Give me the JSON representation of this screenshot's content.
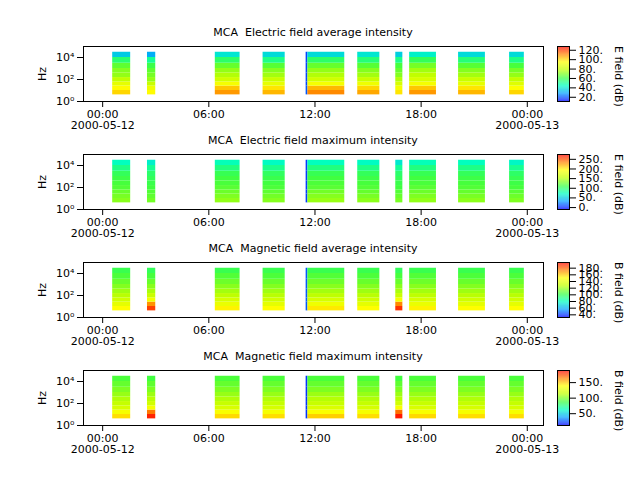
{
  "chart_data": [
    {
      "type": "heatmap",
      "title": "MCA  Electric field average intensity",
      "y_label": "Hz",
      "log": "y",
      "xlim": [
        "2000-05-11T22:55",
        "2000-05-13T00:55"
      ],
      "xticks": [
        {
          "value": "2000-05-12T00:00",
          "label": "00:00\n2000-05-12"
        },
        {
          "value": "2000-05-12T06:00",
          "label": "06:00"
        },
        {
          "value": "2000-05-12T12:00",
          "label": "12:00"
        },
        {
          "value": "2000-05-12T18:00",
          "label": "18:00"
        },
        {
          "value": "2000-05-13T00:00",
          "label": "00:00\n2000-05-13"
        }
      ],
      "ylim": [
        1,
        100000
      ],
      "yticks": [
        {
          "value": 1,
          "label": "10⁰"
        },
        {
          "value": 100,
          "label": "10²"
        },
        {
          "value": 10000,
          "label": "10⁴"
        }
      ],
      "time_bins": [
        [
          "2000-05-12T00:34",
          "2000-05-12T01:35"
        ],
        [
          "2000-05-12T02:32",
          "2000-05-12T03:00"
        ],
        [
          "2000-05-12T06:22",
          "2000-05-12T07:46"
        ],
        [
          "2000-05-12T09:04",
          "2000-05-12T10:19"
        ],
        [
          "2000-05-12T11:30",
          "2000-05-12T11:36"
        ],
        [
          "2000-05-12T11:36",
          "2000-05-12T13:41"
        ],
        [
          "2000-05-12T14:25",
          "2000-05-12T15:40"
        ],
        [
          "2000-05-12T16:34",
          "2000-05-12T16:58"
        ],
        [
          "2000-05-12T17:21",
          "2000-05-12T18:52"
        ],
        [
          "2000-05-12T20:07",
          "2000-05-12T21:38"
        ],
        [
          "2000-05-12T23:00",
          "2000-05-12T23:50"
        ]
      ],
      "freq_bins": [
        4,
        10,
        25,
        60,
        150,
        400,
        1000,
        3000,
        10000,
        30000
      ],
      "values": [
        [
          100,
          95,
          88,
          78,
          72,
          70,
          65,
          55,
          35
        ],
        [
          95,
          90,
          80,
          72,
          68,
          65,
          60,
          50,
          30
        ],
        [
          108,
          102,
          92,
          82,
          76,
          72,
          66,
          56,
          40
        ],
        [
          104,
          98,
          88,
          80,
          74,
          70,
          64,
          52,
          38
        ],
        [
          20,
          20,
          18,
          18,
          18,
          18,
          18,
          18,
          18
        ],
        [
          110,
          104,
          92,
          82,
          76,
          72,
          66,
          56,
          38
        ],
        [
          106,
          100,
          90,
          80,
          74,
          70,
          64,
          54,
          40
        ],
        [
          98,
          92,
          84,
          76,
          70,
          66,
          62,
          52,
          36
        ],
        [
          108,
          102,
          92,
          84,
          78,
          74,
          68,
          58,
          42
        ],
        [
          104,
          98,
          88,
          80,
          74,
          70,
          64,
          54,
          38
        ],
        [
          100,
          94,
          86,
          78,
          72,
          68,
          62,
          52,
          38
        ]
      ],
      "colorbar": {
        "label": "E field (dB)",
        "range": [
          11,
          128
        ],
        "ticks": [
          {
            "value": 20,
            "label": "20."
          },
          {
            "value": 40,
            "label": "40."
          },
          {
            "value": 60,
            "label": "60."
          },
          {
            "value": 80,
            "label": "80."
          },
          {
            "value": 100,
            "label": "100."
          },
          {
            "value": 120,
            "label": "120."
          }
        ]
      }
    },
    {
      "type": "heatmap",
      "title": "MCA  Electric field maximum intensity",
      "y_label": "Hz",
      "log": "y",
      "xlim": [
        "2000-05-11T22:55",
        "2000-05-13T00:55"
      ],
      "xticks": [
        {
          "value": "2000-05-12T00:00",
          "label": "00:00\n2000-05-12"
        },
        {
          "value": "2000-05-12T06:00",
          "label": "06:00"
        },
        {
          "value": "2000-05-12T12:00",
          "label": "12:00"
        },
        {
          "value": "2000-05-12T18:00",
          "label": "18:00"
        },
        {
          "value": "2000-05-13T00:00",
          "label": "00:00\n2000-05-13"
        }
      ],
      "ylim": [
        1,
        100000
      ],
      "yticks": [
        {
          "value": 1,
          "label": "10⁰"
        },
        {
          "value": 100,
          "label": "10²"
        },
        {
          "value": 10000,
          "label": "10⁴"
        }
      ],
      "time_bins": [
        [
          "2000-05-12T00:34",
          "2000-05-12T01:35"
        ],
        [
          "2000-05-12T02:32",
          "2000-05-12T03:00"
        ],
        [
          "2000-05-12T06:22",
          "2000-05-12T07:46"
        ],
        [
          "2000-05-12T09:04",
          "2000-05-12T10:19"
        ],
        [
          "2000-05-12T11:30",
          "2000-05-12T11:36"
        ],
        [
          "2000-05-12T11:36",
          "2000-05-12T13:41"
        ],
        [
          "2000-05-12T14:25",
          "2000-05-12T15:40"
        ],
        [
          "2000-05-12T16:34",
          "2000-05-12T16:58"
        ],
        [
          "2000-05-12T17:21",
          "2000-05-12T18:52"
        ],
        [
          "2000-05-12T20:07",
          "2000-05-12T21:38"
        ],
        [
          "2000-05-12T23:00",
          "2000-05-12T23:50"
        ]
      ],
      "freq_bins": [
        4,
        10,
        25,
        60,
        150,
        400,
        1000,
        3000,
        10000,
        30000
      ],
      "values": [
        [
          135,
          130,
          125,
          118,
          114,
          110,
          104,
          90,
          72
        ],
        [
          128,
          122,
          118,
          112,
          108,
          104,
          98,
          85,
          65
        ],
        [
          138,
          132,
          126,
          120,
          115,
          112,
          106,
          92,
          74
        ],
        [
          134,
          128,
          122,
          116,
          112,
          108,
          102,
          88,
          70
        ],
        [
          5,
          5,
          5,
          5,
          5,
          5,
          5,
          5,
          5
        ],
        [
          140,
          134,
          128,
          120,
          116,
          112,
          106,
          92,
          72
        ],
        [
          136,
          130,
          124,
          118,
          114,
          110,
          104,
          90,
          70
        ],
        [
          130,
          124,
          118,
          112,
          108,
          104,
          98,
          84,
          62
        ],
        [
          138,
          132,
          126,
          120,
          115,
          112,
          106,
          92,
          74
        ],
        [
          136,
          130,
          124,
          118,
          114,
          110,
          104,
          90,
          72
        ],
        [
          132,
          126,
          120,
          114,
          110,
          106,
          100,
          86,
          68
        ]
      ],
      "colorbar": {
        "label": "E field (dB)",
        "range": [
          -10,
          275
        ],
        "ticks": [
          {
            "value": 0,
            "label": "0."
          },
          {
            "value": 50,
            "label": "50."
          },
          {
            "value": 100,
            "label": "100."
          },
          {
            "value": 150,
            "label": "150."
          },
          {
            "value": 200,
            "label": "200."
          },
          {
            "value": 250,
            "label": "250."
          }
        ]
      }
    },
    {
      "type": "heatmap",
      "title": "MCA  Magnetic field average intensity",
      "y_label": "Hz",
      "log": "y",
      "xlim": [
        "2000-05-11T22:55",
        "2000-05-13T00:55"
      ],
      "xticks": [
        {
          "value": "2000-05-12T00:00",
          "label": "00:00\n2000-05-12"
        },
        {
          "value": "2000-05-12T06:00",
          "label": "06:00"
        },
        {
          "value": "2000-05-12T12:00",
          "label": "12:00"
        },
        {
          "value": "2000-05-12T18:00",
          "label": "18:00"
        },
        {
          "value": "2000-05-13T00:00",
          "label": "00:00\n2000-05-13"
        }
      ],
      "ylim": [
        1,
        100000
      ],
      "yticks": [
        {
          "value": 1,
          "label": "10⁰"
        },
        {
          "value": 100,
          "label": "10²"
        },
        {
          "value": 10000,
          "label": "10⁴"
        }
      ],
      "time_bins": [
        [
          "2000-05-12T00:34",
          "2000-05-12T01:35"
        ],
        [
          "2000-05-12T02:32",
          "2000-05-12T03:00"
        ],
        [
          "2000-05-12T06:22",
          "2000-05-12T07:46"
        ],
        [
          "2000-05-12T09:04",
          "2000-05-12T10:19"
        ],
        [
          "2000-05-12T11:30",
          "2000-05-12T11:36"
        ],
        [
          "2000-05-12T11:36",
          "2000-05-12T13:41"
        ],
        [
          "2000-05-12T14:25",
          "2000-05-12T15:40"
        ],
        [
          "2000-05-12T16:34",
          "2000-05-12T16:58"
        ],
        [
          "2000-05-12T17:21",
          "2000-05-12T18:52"
        ],
        [
          "2000-05-12T20:07",
          "2000-05-12T21:38"
        ],
        [
          "2000-05-12T23:00",
          "2000-05-12T23:50"
        ]
      ],
      "freq_bins": [
        4,
        10,
        25,
        60,
        150,
        400,
        1000,
        3000,
        10000,
        30000
      ],
      "values": [
        [
          150,
          140,
          132,
          125,
          120,
          115,
          110,
          105,
          100
        ],
        [
          185,
          170,
          145,
          130,
          122,
          116,
          110,
          104,
          98
        ],
        [
          152,
          142,
          134,
          126,
          121,
          116,
          111,
          106,
          100
        ],
        [
          150,
          140,
          132,
          125,
          120,
          115,
          110,
          105,
          100
        ],
        [
          45,
          45,
          45,
          45,
          45,
          45,
          45,
          45,
          45
        ],
        [
          154,
          144,
          134,
          126,
          121,
          116,
          111,
          106,
          100
        ],
        [
          150,
          140,
          132,
          125,
          120,
          115,
          110,
          105,
          100
        ],
        [
          188,
          172,
          146,
          130,
          122,
          116,
          110,
          104,
          98
        ],
        [
          152,
          142,
          134,
          126,
          121,
          116,
          111,
          106,
          100
        ],
        [
          150,
          140,
          132,
          125,
          120,
          115,
          110,
          105,
          100
        ],
        [
          150,
          140,
          132,
          125,
          120,
          115,
          110,
          105,
          100
        ]
      ],
      "colorbar": {
        "label": "B field (dB)",
        "range": [
          32,
          197
        ],
        "ticks": [
          {
            "value": 40,
            "label": "40."
          },
          {
            "value": 60,
            "label": "60."
          },
          {
            "value": 80,
            "label": "80."
          },
          {
            "value": 100,
            "label": "100."
          },
          {
            "value": 120,
            "label": "120."
          },
          {
            "value": 140,
            "label": "140."
          },
          {
            "value": 160,
            "label": "160."
          },
          {
            "value": 180,
            "label": "180."
          }
        ]
      }
    },
    {
      "type": "heatmap",
      "title": "MCA  Magnetic field maximum intensity",
      "y_label": "Hz",
      "log": "y",
      "xlim": [
        "2000-05-11T22:55",
        "2000-05-13T00:55"
      ],
      "xticks": [
        {
          "value": "2000-05-12T00:00",
          "label": "00:00\n2000-05-12"
        },
        {
          "value": "2000-05-12T06:00",
          "label": "06:00"
        },
        {
          "value": "2000-05-12T12:00",
          "label": "12:00"
        },
        {
          "value": "2000-05-12T18:00",
          "label": "18:00"
        },
        {
          "value": "2000-05-13T00:00",
          "label": "00:00\n2000-05-13"
        }
      ],
      "ylim": [
        1,
        100000
      ],
      "yticks": [
        {
          "value": 1,
          "label": "10⁰"
        },
        {
          "value": 100,
          "label": "10²"
        },
        {
          "value": 10000,
          "label": "10⁴"
        }
      ],
      "time_bins": [
        [
          "2000-05-12T00:34",
          "2000-05-12T01:35"
        ],
        [
          "2000-05-12T02:32",
          "2000-05-12T03:00"
        ],
        [
          "2000-05-12T06:22",
          "2000-05-12T07:46"
        ],
        [
          "2000-05-12T09:04",
          "2000-05-12T10:19"
        ],
        [
          "2000-05-12T11:30",
          "2000-05-12T11:36"
        ],
        [
          "2000-05-12T11:36",
          "2000-05-12T13:41"
        ],
        [
          "2000-05-12T14:25",
          "2000-05-12T15:40"
        ],
        [
          "2000-05-12T16:34",
          "2000-05-12T16:58"
        ],
        [
          "2000-05-12T17:21",
          "2000-05-12T18:52"
        ],
        [
          "2000-05-12T20:07",
          "2000-05-12T21:38"
        ],
        [
          "2000-05-12T23:00",
          "2000-05-12T23:50"
        ]
      ],
      "freq_bins": [
        4,
        10,
        25,
        60,
        150,
        400,
        1000,
        3000,
        10000,
        30000
      ],
      "values": [
        [
          145,
          135,
          122,
          115,
          110,
          105,
          100,
          95,
          90
        ],
        [
          182,
          165,
          135,
          120,
          112,
          106,
          100,
          94,
          88
        ],
        [
          146,
          136,
          123,
          116,
          110,
          105,
          100,
          95,
          90
        ],
        [
          145,
          135,
          122,
          115,
          110,
          105,
          100,
          95,
          90
        ],
        [
          20,
          20,
          20,
          20,
          20,
          20,
          20,
          20,
          20
        ],
        [
          148,
          137,
          124,
          116,
          111,
          106,
          100,
          95,
          90
        ],
        [
          145,
          135,
          122,
          115,
          110,
          105,
          100,
          95,
          90
        ],
        [
          184,
          167,
          136,
          120,
          112,
          106,
          100,
          94,
          88
        ],
        [
          146,
          136,
          123,
          116,
          110,
          105,
          100,
          95,
          90
        ],
        [
          145,
          135,
          122,
          115,
          110,
          105,
          100,
          95,
          90
        ],
        [
          145,
          135,
          122,
          115,
          110,
          105,
          100,
          95,
          90
        ]
      ],
      "colorbar": {
        "label": "B field (dB)",
        "range": [
          12,
          189
        ],
        "ticks": [
          {
            "value": 50,
            "label": "50."
          },
          {
            "value": 100,
            "label": "100."
          },
          {
            "value": 150,
            "label": "150."
          }
        ]
      }
    }
  ]
}
